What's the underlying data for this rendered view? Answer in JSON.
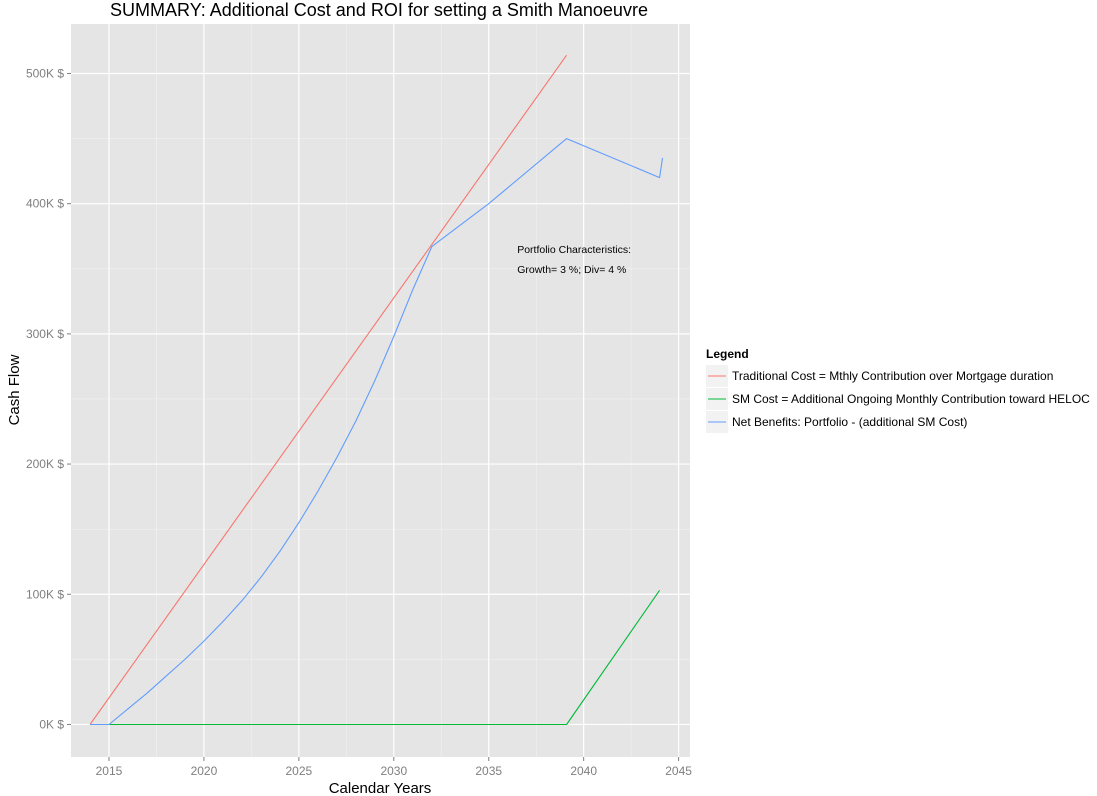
{
  "chart_data": {
    "type": "line",
    "title": "SUMMARY: Additional Cost and ROI for setting a Smith Manoeuvre",
    "xlabel": "Calendar Years",
    "ylabel": "Cash Flow",
    "xlim": [
      2013.0,
      2045.6
    ],
    "ylim": [
      -25000,
      538000
    ],
    "x_ticks": [
      2015,
      2020,
      2025,
      2030,
      2035,
      2040,
      2045
    ],
    "y_ticks": [
      0,
      100000,
      200000,
      300000,
      400000,
      500000
    ],
    "y_tick_labels": [
      "0K $",
      "100K $",
      "200K $",
      "300K $",
      "400K $",
      "500K $"
    ],
    "grid": true,
    "legend_position": "right",
    "legend_title": "Legend",
    "colors": {
      "panel_bg": "#e5e5e5",
      "grid_major": "#ffffff",
      "grid_minor": "#f2f2f2"
    },
    "series": [
      {
        "name": "Traditional Cost = Mthly Contribution over Mortgage duration",
        "color": "#f8766d",
        "points": [
          [
            2014,
            0
          ],
          [
            2039.1,
            514000
          ]
        ]
      },
      {
        "name": "SM Cost = Additional Ongoing Monthly Contribution toward HELOC",
        "color": "#00ba38",
        "points": [
          [
            2014,
            0
          ],
          [
            2039.1,
            0
          ],
          [
            2044.0,
            103000
          ]
        ]
      },
      {
        "name": "Net Benefits: Portfolio - (additional SM Cost)",
        "color": "#619cff",
        "points": [
          [
            2014,
            0
          ],
          [
            2015,
            0
          ],
          [
            2016,
            12000
          ],
          [
            2017,
            24000
          ],
          [
            2018,
            37000
          ],
          [
            2019,
            50000
          ],
          [
            2020,
            64000
          ],
          [
            2021,
            79000
          ],
          [
            2022,
            95000
          ],
          [
            2023,
            113000
          ],
          [
            2024,
            133000
          ],
          [
            2025,
            155000
          ],
          [
            2026,
            179000
          ],
          [
            2027,
            205000
          ],
          [
            2028,
            233000
          ],
          [
            2029,
            264000
          ],
          [
            2030,
            298000
          ],
          [
            2031,
            334000
          ],
          [
            2032,
            367000
          ],
          [
            2035,
            400000
          ],
          [
            2039.1,
            450000
          ],
          [
            2044.0,
            420000
          ],
          [
            2044.15,
            435000
          ]
        ]
      }
    ],
    "annotations": [
      {
        "x": 2036.5,
        "y": 365000,
        "text": "Portfolio Characteristics:"
      },
      {
        "x": 2036.5,
        "y": 350000,
        "text": "Growth= 3 %; Div= 4 %"
      }
    ]
  }
}
